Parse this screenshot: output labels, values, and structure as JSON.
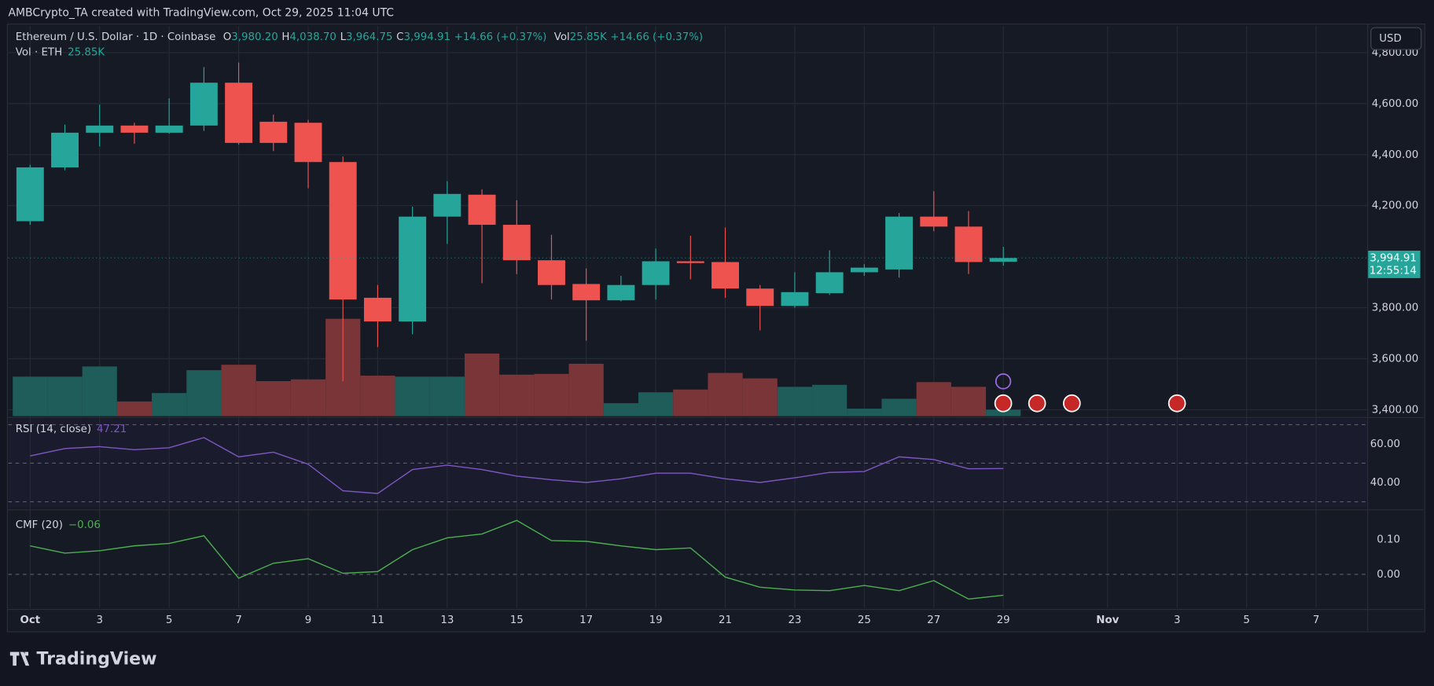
{
  "header": {
    "credit": "AMBCrypto_TA created with TradingView.com, Oct 29, 2025 11:04 UTC",
    "logo": "TradingView",
    "currency": "USD"
  },
  "chart_data": {
    "type": "candlestick",
    "title": "Ethereum / U.S. Dollar · 1D · Coinbase",
    "ohlc_legend": [
      {
        "key": "O",
        "value": "3,980.20"
      },
      {
        "key": "H",
        "value": "4,038.70"
      },
      {
        "key": "L",
        "value": "3,964.75"
      },
      {
        "key": "C",
        "value": "3,994.91"
      }
    ],
    "change": "+14.66 (+0.37%)",
    "volume_legend": {
      "key": "Vol",
      "value": "25.85K",
      "change": "+14.66 (+0.37%)"
    },
    "volume_title": "Vol · ETH",
    "volume_title_value": "25.85K",
    "last_price_label": "3,994.91",
    "countdown": "12:55:14",
    "up_color": "#26a69a",
    "down_color": "#ef5350",
    "up_volume_color": "#1f5d5a",
    "down_volume_color": "#7a3538",
    "x": [
      1,
      2,
      3,
      4,
      5,
      6,
      7,
      8,
      9,
      10,
      11,
      12,
      13,
      14,
      15,
      16,
      17,
      18,
      19,
      20,
      21,
      22,
      23,
      24,
      25,
      26,
      27,
      28,
      29
    ],
    "open": [
      4139,
      4350,
      4486,
      4514,
      4486,
      4514,
      4682,
      4529,
      4525,
      4371,
      3839,
      3746,
      4157,
      4243,
      4125,
      3986,
      3893,
      3829,
      3889,
      3982,
      3979,
      3875,
      3807,
      3857,
      3939,
      3950,
      4157,
      4118,
      3980.2
    ],
    "high": [
      4360,
      4518,
      4596,
      4525,
      4621,
      4743,
      4761,
      4557,
      4536,
      4393,
      3889,
      4196,
      4296,
      4264,
      4221,
      4086,
      3954,
      3925,
      4032,
      4082,
      4114,
      3889,
      3939,
      4025,
      3971,
      4171,
      4257,
      4179,
      4038.7
    ],
    "low": [
      4125,
      4339,
      4432,
      4443,
      4482,
      4493,
      4439,
      4414,
      4268,
      3511,
      3646,
      3696,
      4050,
      3896,
      3932,
      3832,
      3671,
      3825,
      3832,
      3911,
      3839,
      3711,
      3800,
      3850,
      3925,
      3918,
      4100,
      3932,
      3964.75
    ],
    "close": [
      4350,
      4486,
      4514,
      4486,
      4514,
      4682,
      4446,
      4446,
      4371,
      3832,
      3746,
      4157,
      4246,
      4125,
      3986,
      3889,
      3829,
      3889,
      3982,
      3975,
      3875,
      3807,
      3861,
      3939,
      3957,
      4157,
      4118,
      3979,
      3994.91
    ],
    "volume": [
      159000,
      159000,
      200000,
      59000,
      93000,
      185000,
      207000,
      141000,
      148000,
      392000,
      163000,
      159000,
      159000,
      252000,
      167000,
      170000,
      211000,
      52000,
      96000,
      107000,
      174000,
      152000,
      118000,
      126000,
      30000,
      70000,
      137000,
      118000,
      25850
    ],
    "volume_ylim": [
      0,
      1572000
    ],
    "xlim": [
      0.37,
      39.47
    ],
    "xticks": [
      {
        "value": 1,
        "label": "Oct"
      },
      3,
      5,
      7,
      9,
      11,
      13,
      15,
      17,
      19,
      21,
      23,
      25,
      27,
      29,
      {
        "value": 32,
        "label": "Nov"
      },
      {
        "value": 34,
        "label": "3"
      },
      {
        "value": 36,
        "label": "5"
      },
      {
        "value": 38,
        "label": "7"
      }
    ],
    "ylim": [
      3375,
      4905
    ],
    "yticks": [
      {
        "value": 3400,
        "label": "3,400.00"
      },
      {
        "value": 3600,
        "label": "3,600.00"
      },
      {
        "value": 3800,
        "label": "3,800.00"
      },
      {
        "value": 4200,
        "label": "4,200.00"
      },
      {
        "value": 4400,
        "label": "4,400.00"
      },
      {
        "value": 4600,
        "label": "4,600.00"
      },
      {
        "value": 4800,
        "label": "4,800.00"
      }
    ],
    "grid": true,
    "rsi": {
      "name": "RSI (14, close)",
      "last_label": "47.21",
      "color": "#7e57c2",
      "values": [
        53.8,
        57.6,
        58.6,
        57,
        58,
        63.3,
        53.3,
        55.7,
        49.5,
        35.7,
        34.3,
        46.7,
        49,
        46.7,
        43.3,
        41.4,
        40,
        41.9,
        44.8,
        44.8,
        41.9,
        40,
        42.4,
        45.2,
        45.7,
        53.3,
        51.9,
        47.1,
        47.21
      ],
      "ylim": [
        27,
        73
      ],
      "yticks": [
        {
          "value": 40,
          "label": "40.00"
        },
        {
          "value": 60,
          "label": "60.00"
        }
      ],
      "levels": [
        30,
        50,
        70
      ]
    },
    "cmf": {
      "name": "CMF (20)",
      "last_label": "−0.06",
      "color": "#4caf50",
      "values": [
        0.082,
        0.061,
        0.068,
        0.082,
        0.089,
        0.111,
        -0.011,
        0.032,
        0.045,
        0.003,
        0.008,
        0.071,
        0.105,
        0.116,
        0.155,
        0.097,
        0.095,
        0.082,
        0.071,
        0.076,
        -0.008,
        -0.037,
        -0.045,
        -0.047,
        -0.032,
        -0.047,
        -0.018,
        -0.071,
        -0.06
      ],
      "ylim": [
        -0.097,
        0.179
      ],
      "yticks": [
        {
          "value": 0,
          "label": "0.00"
        },
        {
          "value": 0.1,
          "label": "0.10"
        }
      ],
      "levels": [
        0
      ]
    }
  }
}
